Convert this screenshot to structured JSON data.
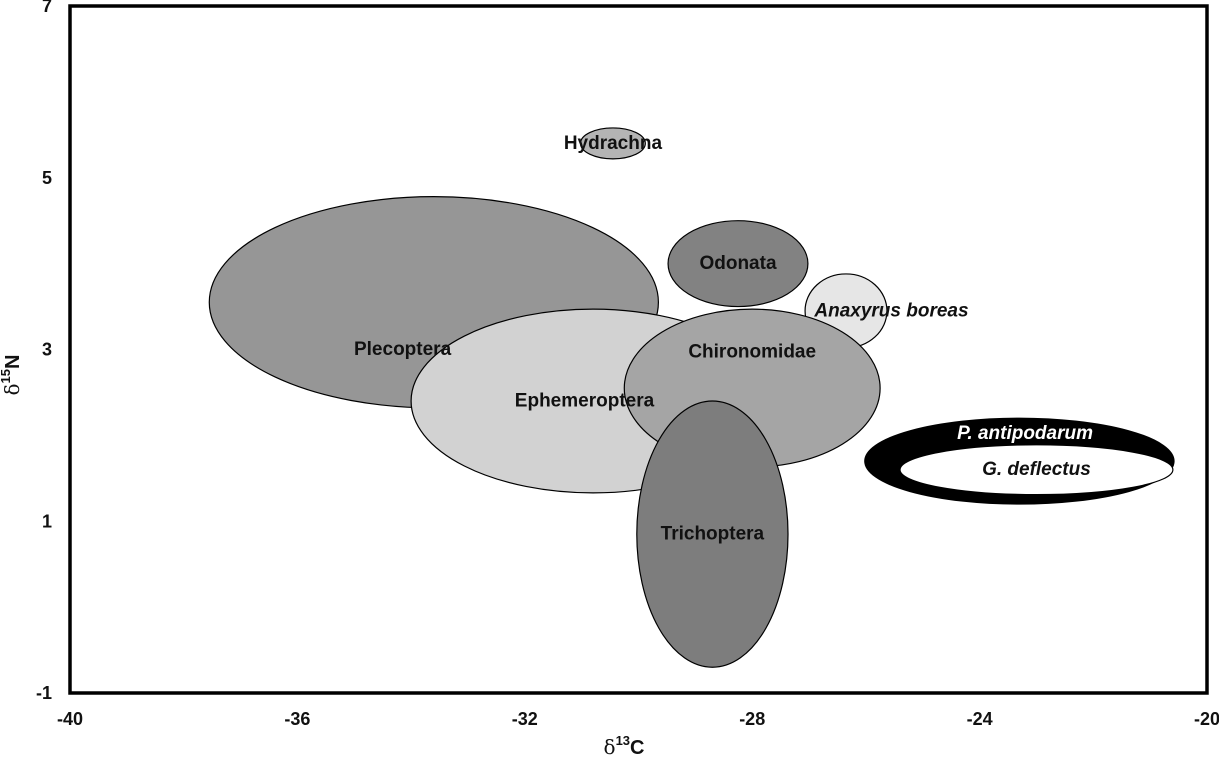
{
  "chart_data": {
    "type": "scatter",
    "title": "",
    "xlabel": {
      "symbol": "δ",
      "sup": "13",
      "element": "C"
    },
    "ylabel": {
      "symbol": "δ",
      "sup": "15",
      "element": "N"
    },
    "xlim": [
      -40,
      -20
    ],
    "ylim": [
      -1,
      7
    ],
    "xticks": [
      -40,
      -36,
      -32,
      -28,
      -24,
      -20
    ],
    "yticks": [
      -1,
      1,
      3,
      5,
      7
    ],
    "grid": false,
    "legend": "none",
    "groups": [
      {
        "name": "Plecoptera",
        "cx": -33.6,
        "cy": 3.55,
        "rx": 3.95,
        "ry": 1.23,
        "fill": "#969696",
        "label_color": "#111111",
        "italic": false
      },
      {
        "name": "Hydrachna",
        "cx": -30.45,
        "cy": 5.4,
        "rx": 0.57,
        "ry": 0.18,
        "fill": "#b4b4b4",
        "label_color": "#111111",
        "italic": false
      },
      {
        "name": "Odonata",
        "cx": -28.25,
        "cy": 4.0,
        "rx": 1.23,
        "ry": 0.5,
        "fill": "#828282",
        "label_color": "#111111",
        "italic": false
      },
      {
        "name": "Anaxyrus boreas",
        "cx": -26.35,
        "cy": 3.45,
        "rx": 0.72,
        "ry": 0.43,
        "fill": "#e6e6e6",
        "label_color": "#111111",
        "italic": true
      },
      {
        "name": "Ephemeroptera",
        "cx": -30.8,
        "cy": 2.4,
        "rx": 3.2,
        "ry": 1.07,
        "fill": "#d2d2d2",
        "label_color": "#111111",
        "italic": false
      },
      {
        "name": "Chironomidae",
        "cx": -28.0,
        "cy": 2.55,
        "rx": 2.25,
        "ry": 0.92,
        "fill": "#a5a5a5",
        "label_color": "#111111",
        "italic": false
      },
      {
        "name": "Trichoptera",
        "cx": -28.7,
        "cy": 0.85,
        "rx": 1.33,
        "ry": 1.55,
        "fill": "#7d7d7d",
        "label_color": "#111111",
        "italic": false
      },
      {
        "name": "P. antipodarum",
        "cx": -23.3,
        "cy": 1.7,
        "rx": 2.72,
        "ry": 0.5,
        "fill": "#000000",
        "label_color": "#ffffff",
        "italic": true
      },
      {
        "name": "G. deflectus",
        "cx": -23.0,
        "cy": 1.6,
        "rx": 2.4,
        "ry": 0.29,
        "fill": "#ffffff",
        "label_color": "#111111",
        "italic": true
      }
    ]
  }
}
